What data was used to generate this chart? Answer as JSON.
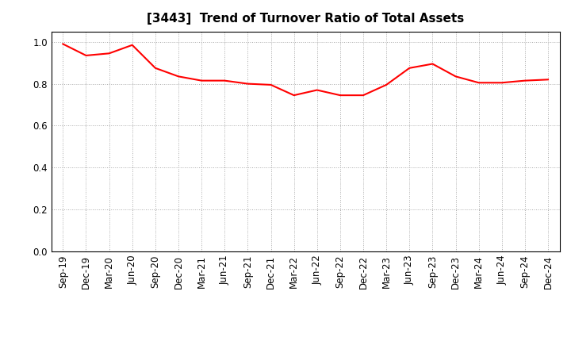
{
  "title": "[3443]  Trend of Turnover Ratio of Total Assets",
  "x_labels": [
    "Sep-19",
    "Dec-19",
    "Mar-20",
    "Jun-20",
    "Sep-20",
    "Dec-20",
    "Mar-21",
    "Jun-21",
    "Sep-21",
    "Dec-21",
    "Mar-22",
    "Jun-22",
    "Sep-22",
    "Dec-22",
    "Mar-23",
    "Jun-23",
    "Sep-23",
    "Dec-23",
    "Mar-24",
    "Jun-24",
    "Sep-24",
    "Dec-24"
  ],
  "y_values": [
    0.99,
    0.935,
    0.945,
    0.985,
    0.875,
    0.835,
    0.815,
    0.815,
    0.8,
    0.795,
    0.745,
    0.77,
    0.745,
    0.745,
    0.795,
    0.875,
    0.895,
    0.835,
    0.805,
    0.805,
    0.815,
    0.82
  ],
  "line_color": "#FF0000",
  "line_width": 1.5,
  "ylim": [
    0.0,
    1.05
  ],
  "yticks": [
    0.0,
    0.2,
    0.4,
    0.6,
    0.8,
    1.0
  ],
  "grid_color": "#aaaaaa",
  "bg_color": "#FFFFFF",
  "title_fontsize": 11,
  "tick_fontsize": 8.5
}
